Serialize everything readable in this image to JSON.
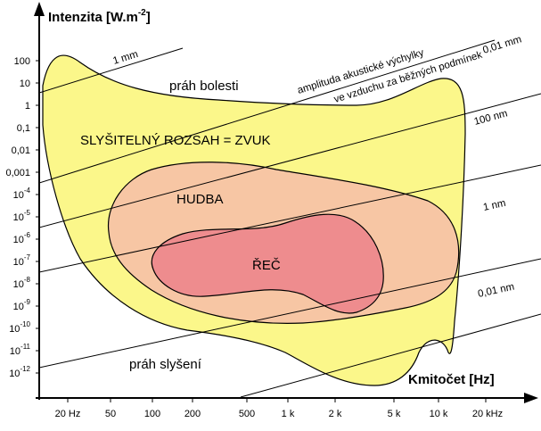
{
  "axes": {
    "y_title": "Intenzita [W.m",
    "y_title_exp": "-2",
    "y_title_close": "]",
    "x_title": "Kmitočet [Hz]",
    "x_ticks": [
      "20 Hz",
      "50",
      "100",
      "200",
      "500",
      "1 k",
      "2 k",
      "5 k",
      "10 k",
      "20 kHz"
    ],
    "y_ticks": [
      {
        "base": "100",
        "exp": ""
      },
      {
        "base": "10",
        "exp": ""
      },
      {
        "base": "1",
        "exp": ""
      },
      {
        "base": "0,1",
        "exp": ""
      },
      {
        "base": "0,01",
        "exp": ""
      },
      {
        "base": "0,001",
        "exp": ""
      },
      {
        "base": "10",
        "exp": "-4"
      },
      {
        "base": "10",
        "exp": "-5"
      },
      {
        "base": "10",
        "exp": "-6"
      },
      {
        "base": "10",
        "exp": "-7"
      },
      {
        "base": "10",
        "exp": "-8"
      },
      {
        "base": "10",
        "exp": "-9"
      },
      {
        "base": "10",
        "exp": "-10"
      },
      {
        "base": "10",
        "exp": "-11"
      },
      {
        "base": "10",
        "exp": "-12"
      }
    ]
  },
  "regions": {
    "pain": "práh bolesti",
    "audible": "SLYŠITELNÝ ROZSAH = ZVUK",
    "music": "HUDBA",
    "speech": "ŘEČ",
    "hearing": "práh slyšení"
  },
  "iso_lines": {
    "l1": "1 mm",
    "l2": "0,01 mm",
    "l3": "100 nm",
    "l4": "1 nm",
    "l5": "0,01 nm",
    "caption_1": "amplituda akustické výchylky",
    "caption_2": "ve vzduchu za běžných podmínek"
  },
  "colors": {
    "audible_fill": "#fbf78a",
    "music_fill": "#f7c6a4",
    "speech_fill": "#ee8c8e",
    "outline": "#000000"
  }
}
